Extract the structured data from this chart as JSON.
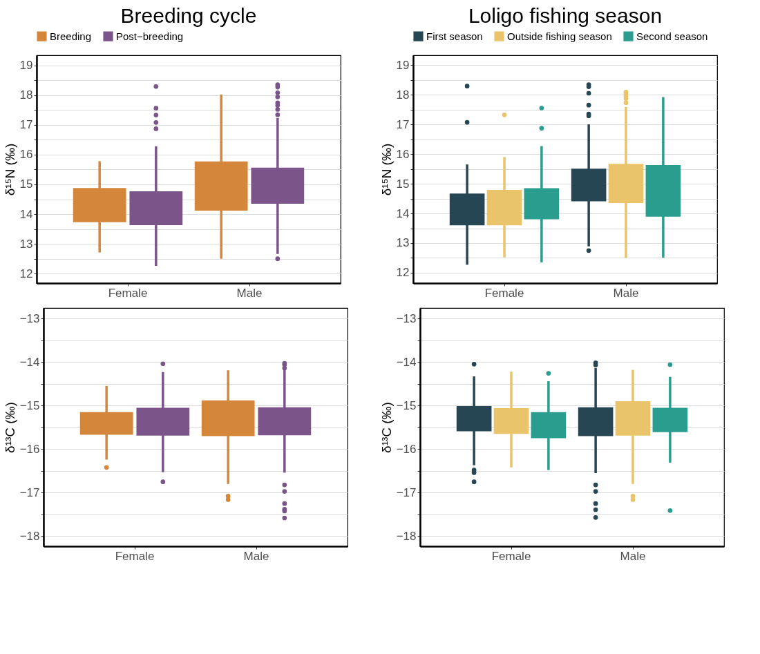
{
  "chart_data": [
    {
      "type": "box",
      "title": "Breeding cycle",
      "ylabel": "δ¹⁵N (‰)",
      "categories": [
        "Female",
        "Male"
      ],
      "ylim": [
        11.68,
        19.34
      ],
      "yticks": [
        12,
        {
          "value": 12.5,
          "label": null
        },
        13,
        {
          "value": 13.5,
          "label": null
        },
        14,
        {
          "value": 14.5,
          "label": null
        },
        15,
        {
          "value": 15.5,
          "label": null
        },
        16,
        {
          "value": 16.5,
          "label": null
        },
        17,
        {
          "value": 17.5,
          "label": null
        },
        18,
        {
          "value": 18.5,
          "label": null
        },
        19
      ],
      "grid": "y",
      "legend": "top",
      "series": [
        {
          "name": "Breeding",
          "color": "#d4873a",
          "boxes": [
            {
              "low": 12.71,
              "q1": 13.73,
              "median": null,
              "q3": 14.88,
              "high": 15.78
            },
            {
              "low": 12.5,
              "q1": 14.12,
              "median": null,
              "q3": 15.77,
              "high": 18.02
            }
          ]
        },
        {
          "name": "Post−breeding",
          "color": "#7b548a",
          "boxes": [
            {
              "low": 12.26,
              "q1": 13.63,
              "median": null,
              "q3": 14.77,
              "high": 16.28,
              "outliers": [
                18.29,
                17.56,
                17.33,
                17.08,
                16.87
              ]
            },
            {
              "low": 12.66,
              "q1": 14.35,
              "median": null,
              "q3": 15.56,
              "high": 17.23,
              "outliers": [
                18.35,
                18.27,
                18.08,
                17.94,
                17.74,
                17.66,
                17.52,
                17.34,
                12.5
              ]
            }
          ]
        }
      ]
    },
    {
      "type": "box",
      "title": "Loligo fishing season",
      "ylabel": "δ¹⁵N (‰)",
      "categories": [
        "Female",
        "Male"
      ],
      "ylim": [
        11.65,
        19.33
      ],
      "yticks": [
        12,
        {
          "value": 12.5,
          "label": null
        },
        13,
        {
          "value": 13.5,
          "label": null
        },
        14,
        {
          "value": 14.5,
          "label": null
        },
        15,
        {
          "value": 15.5,
          "label": null
        },
        16,
        {
          "value": 16.5,
          "label": null
        },
        17,
        {
          "value": 17.5,
          "label": null
        },
        18,
        {
          "value": 18.5,
          "label": null
        },
        19
      ],
      "grid": "y",
      "legend": "top",
      "series": [
        {
          "name": "First season",
          "color": "#264653",
          "boxes": [
            {
              "low": 12.27,
              "q1": 13.6,
              "median": null,
              "q3": 14.67,
              "high": 15.65,
              "outliers": [
                18.29,
                17.07
              ]
            },
            {
              "low": 12.89,
              "q1": 14.41,
              "median": null,
              "q3": 15.51,
              "high": 17.0,
              "outliers": [
                18.34,
                18.27,
                18.05,
                17.65,
                17.35,
                17.29,
                12.75
              ]
            }
          ]
        },
        {
          "name": "Outside fishing season",
          "color": "#e9c46a",
          "boxes": [
            {
              "low": 12.52,
              "q1": 13.6,
              "median": null,
              "q3": 14.79,
              "high": 15.9,
              "outliers": [
                17.32
              ]
            },
            {
              "low": 12.5,
              "q1": 14.35,
              "median": null,
              "q3": 15.67,
              "high": 17.59,
              "outliers": [
                18.09,
                18.02,
                17.95,
                17.87,
                17.73
              ]
            }
          ]
        },
        {
          "name": "Second season",
          "color": "#2a9d8f",
          "boxes": [
            {
              "low": 12.35,
              "q1": 13.8,
              "median": null,
              "q3": 14.85,
              "high": 16.27,
              "outliers": [
                17.55,
                16.87
              ]
            },
            {
              "low": 12.51,
              "q1": 13.89,
              "median": null,
              "q3": 15.63,
              "high": 17.92
            }
          ]
        }
      ]
    },
    {
      "type": "box",
      "ylabel": "δ¹³C (‰)",
      "categories": [
        "Female",
        "Male"
      ],
      "ylim": [
        -18.23,
        -12.76
      ],
      "yticks": [
        -18,
        {
          "value": -17.5,
          "label": null
        },
        -17,
        {
          "value": -16.5,
          "label": null
        },
        -16,
        {
          "value": -15.5,
          "label": null
        },
        -15,
        {
          "value": -14.5,
          "label": null
        },
        -14,
        {
          "value": -13.5,
          "label": null
        },
        -13
      ],
      "grid": "y",
      "series": [
        {
          "color": "#d4873a",
          "boxes": [
            {
              "low": -16.24,
              "q1": -15.67,
              "median": null,
              "q3": -15.15,
              "high": -14.55,
              "outliers": [
                -16.42
              ]
            },
            {
              "low": -16.8,
              "q1": -15.7,
              "median": null,
              "q3": -14.88,
              "high": -14.19,
              "outliers": [
                -17.08,
                -17.16
              ]
            }
          ]
        },
        {
          "color": "#7b548a",
          "boxes": [
            {
              "low": -16.53,
              "q1": -15.69,
              "median": null,
              "q3": -15.05,
              "high": -14.23,
              "outliers": [
                -14.04,
                -16.75
              ]
            },
            {
              "low": -16.54,
              "q1": -15.68,
              "median": null,
              "q3": -15.04,
              "high": -14.16,
              "outliers": [
                -14.03,
                -14.06,
                -14.14,
                -16.82,
                -16.97,
                -17.25,
                -17.38,
                -17.42,
                -17.58
              ]
            }
          ]
        }
      ]
    },
    {
      "type": "box",
      "ylabel": "δ¹³C (‰)",
      "categories": [
        "Female",
        "Male"
      ],
      "ylim": [
        -18.23,
        -12.76
      ],
      "yticks": [
        -18,
        {
          "value": -17.5,
          "label": null
        },
        -17,
        {
          "value": -16.5,
          "label": null
        },
        -16,
        {
          "value": -15.5,
          "label": null
        },
        -15,
        {
          "value": -14.5,
          "label": null
        },
        -14,
        {
          "value": -13.5,
          "label": null
        },
        -13
      ],
      "grid": "y",
      "series": [
        {
          "color": "#264653",
          "boxes": [
            {
              "low": -16.37,
              "q1": -15.59,
              "median": null,
              "q3": -15.01,
              "high": -14.33,
              "outliers": [
                -14.05,
                -16.48,
                -16.54,
                -16.75
              ]
            },
            {
              "low": -16.55,
              "q1": -15.7,
              "median": null,
              "q3": -15.04,
              "high": -14.14,
              "outliers": [
                -14.02,
                -14.07,
                -16.82,
                -16.97,
                -17.25,
                -17.39,
                -17.57
              ]
            }
          ]
        },
        {
          "color": "#e9c46a",
          "boxes": [
            {
              "low": -16.42,
              "q1": -15.65,
              "median": null,
              "q3": -15.06,
              "high": -14.22
            },
            {
              "low": -16.8,
              "q1": -15.69,
              "median": null,
              "q3": -14.9,
              "high": -14.18,
              "outliers": [
                -17.08,
                -17.16
              ]
            }
          ]
        },
        {
          "color": "#2a9d8f",
          "boxes": [
            {
              "low": -16.48,
              "q1": -15.75,
              "median": null,
              "q3": -15.15,
              "high": -14.44,
              "outliers": [
                -14.26
              ]
            },
            {
              "low": -16.31,
              "q1": -15.61,
              "median": null,
              "q3": -15.05,
              "high": -14.34,
              "outliers": [
                -14.06,
                -17.41
              ]
            }
          ]
        }
      ]
    }
  ]
}
